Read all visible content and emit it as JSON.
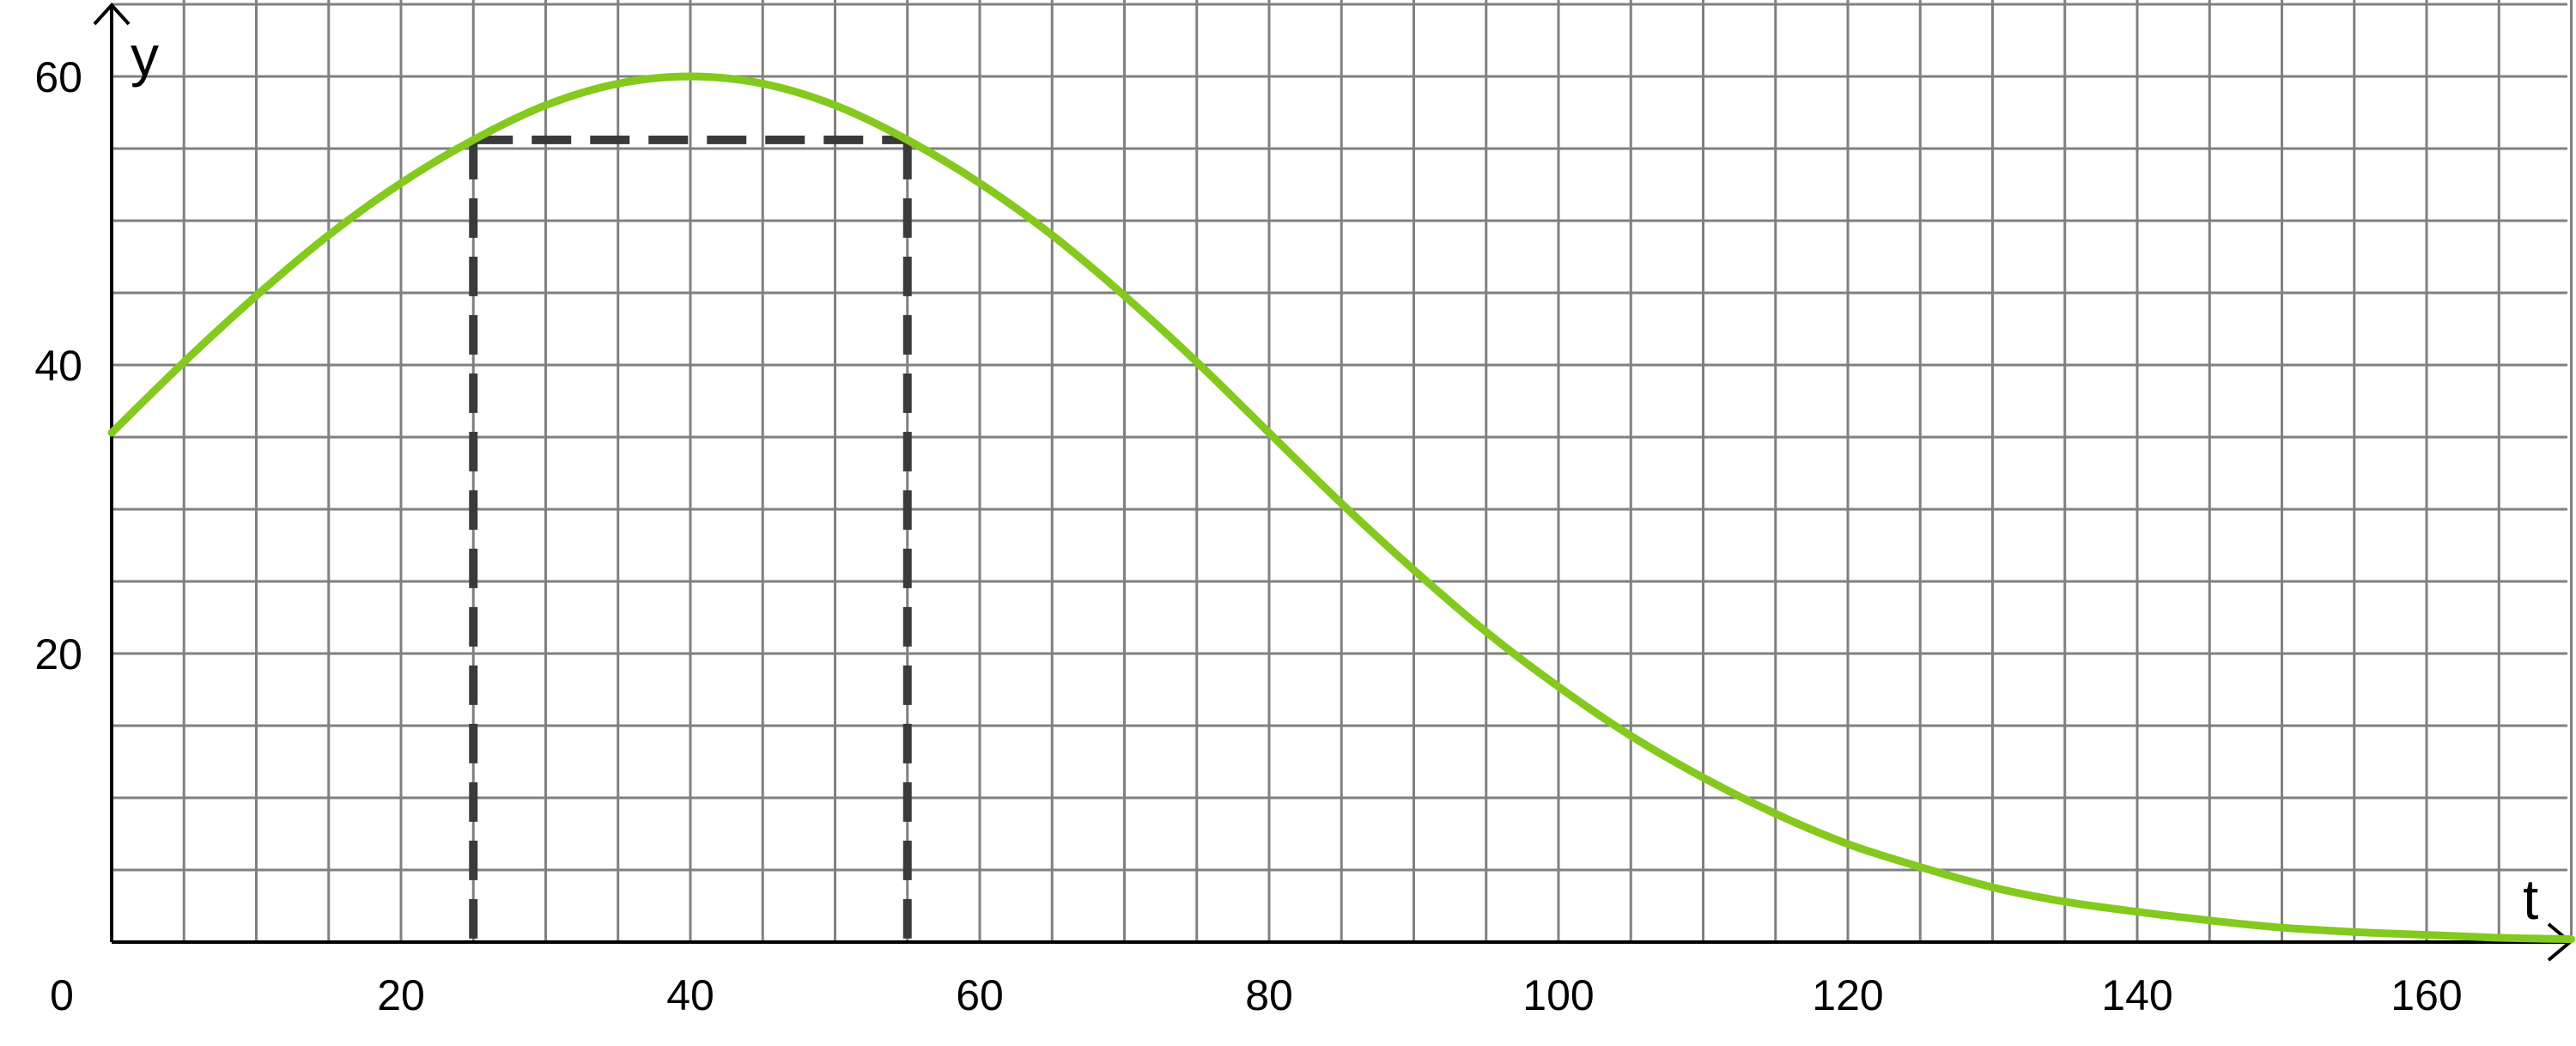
{
  "chart_data": {
    "type": "line",
    "xlabel": "t",
    "ylabel": "y",
    "xlim": [
      0,
      170
    ],
    "ylim": [
      0,
      65
    ],
    "grid": true,
    "grid_step_x": 5,
    "grid_step_y": 5,
    "x_ticks": [
      "0",
      "20",
      "40",
      "60",
      "80",
      "100",
      "120",
      "140",
      "160"
    ],
    "y_ticks": [
      "20",
      "40",
      "60"
    ],
    "x_tick_values": [
      0,
      20,
      40,
      60,
      80,
      100,
      120,
      140,
      160
    ],
    "y_tick_values": [
      20,
      40,
      60
    ],
    "series": [
      {
        "color": "#84c91d",
        "x": [
          0,
          5,
          10,
          15,
          20,
          25,
          30,
          35,
          40,
          45,
          50,
          55,
          60,
          65,
          70,
          75,
          80,
          85,
          90,
          95,
          100,
          105,
          110,
          115,
          120,
          125,
          130,
          135,
          140,
          145,
          150,
          155,
          160,
          165,
          170
        ],
        "y": [
          35.3,
          40.2,
          44.8,
          49.0,
          52.6,
          55.6,
          58.0,
          59.5,
          60.0,
          59.5,
          58.0,
          55.6,
          52.6,
          49.0,
          44.8,
          40.2,
          35.3,
          30.4,
          25.8,
          21.5,
          17.7,
          14.3,
          11.4,
          8.9,
          6.8,
          5.2,
          3.8,
          2.8,
          2.1,
          1.5,
          1.0,
          0.7,
          0.5,
          0.3,
          0.2
        ]
      }
    ],
    "annotations": {
      "color": "#3a3a3a",
      "level_y": 55.6,
      "t_left": 25,
      "t_right": 55
    }
  }
}
